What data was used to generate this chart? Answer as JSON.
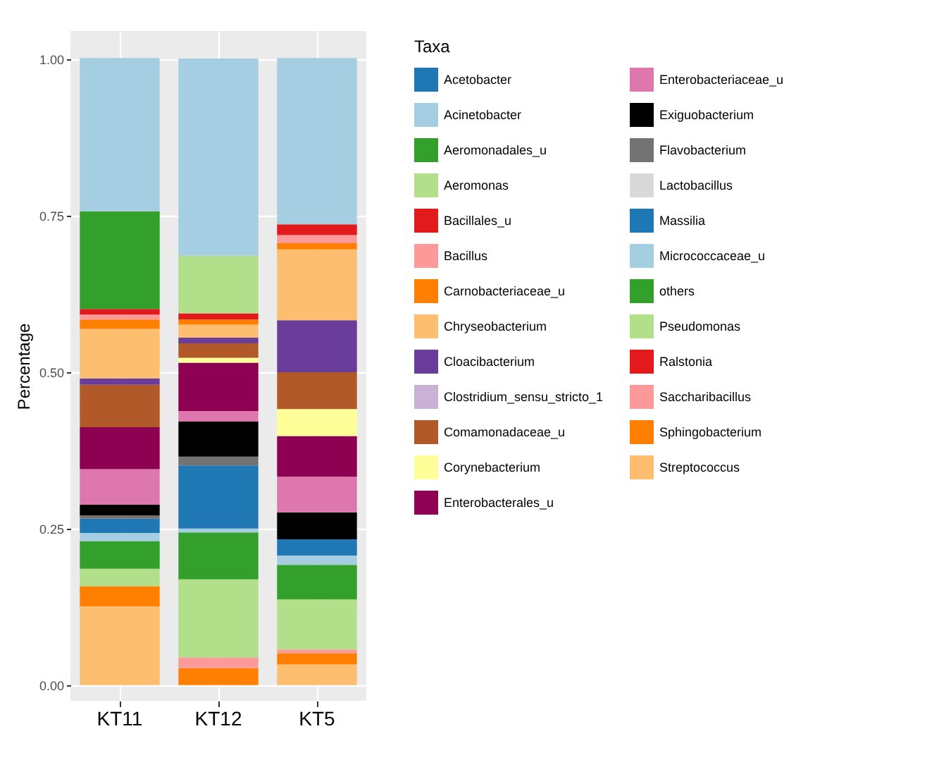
{
  "chart_data": {
    "type": "bar",
    "stacked": true,
    "ylabel": "Percentage",
    "legend_title": "Taxa",
    "legend": "right",
    "grid": true,
    "categories": [
      "KT11",
      "KT12",
      "KT5"
    ],
    "ylim": [
      -0.025,
      1.045
    ],
    "yticks": [
      {
        "value": 0,
        "label": "0.00"
      },
      {
        "value": 0.25,
        "label": "0.25"
      },
      {
        "value": 0.5,
        "label": "0.50"
      },
      {
        "value": 0.75,
        "label": "0.75"
      },
      {
        "value": 1,
        "label": "1.00"
      }
    ],
    "series": [
      {
        "name": "Streptococcus",
        "color": "#fdbf6f",
        "values": [
          0.126,
          null,
          0.033
        ]
      },
      {
        "name": "Sphingobacterium",
        "color": "#ff7f00",
        "values": [
          0.032,
          0.027,
          0.018
        ]
      },
      {
        "name": "Saccharibacillus",
        "color": "#fb9a99",
        "values": [
          null,
          0.017,
          0.006
        ]
      },
      {
        "name": "Ralstonia",
        "color": "#e31a1c",
        "values": [
          null,
          null,
          null
        ]
      },
      {
        "name": "Pseudomonas",
        "color": "#b2df8a",
        "values": [
          0.028,
          0.125,
          0.08
        ]
      },
      {
        "name": "others",
        "color": "#33a02c",
        "values": [
          0.044,
          0.075,
          0.055
        ]
      },
      {
        "name": "Micrococcaceae_u",
        "color": "#a6cee3",
        "values": [
          0.013,
          0.006,
          0.015
        ]
      },
      {
        "name": "Massilia",
        "color": "#1f78b4",
        "values": [
          0.023,
          0.101,
          0.026
        ]
      },
      {
        "name": "Lactobacillus",
        "color": "#d9d9d9",
        "values": [
          null,
          null,
          null
        ]
      },
      {
        "name": "Flavobacterium",
        "color": "#737373",
        "values": [
          0.005,
          0.014,
          null
        ]
      },
      {
        "name": "Exiguobacterium",
        "color": "#000000",
        "values": [
          0.017,
          0.056,
          0.043
        ]
      },
      {
        "name": "Enterobacteriaceae_u",
        "color": "#de77ae",
        "values": [
          0.057,
          0.017,
          0.057
        ]
      },
      {
        "name": "Enterobacterales_u",
        "color": "#8e0152",
        "values": [
          0.067,
          0.077,
          0.065
        ]
      },
      {
        "name": "Corynebacterium",
        "color": "#ffff99",
        "values": [
          null,
          0.008,
          0.043
        ]
      },
      {
        "name": "Comamonadaceae_u",
        "color": "#b15928",
        "values": [
          0.068,
          0.023,
          0.059
        ]
      },
      {
        "name": "Clostridium_sensu_stricto_1",
        "color": "#cab2d6",
        "values": [
          null,
          null,
          null
        ]
      },
      {
        "name": "Cloacibacterium",
        "color": "#6a3d9a",
        "values": [
          0.01,
          0.009,
          0.083
        ]
      },
      {
        "name": "Chryseobacterium",
        "color": "#fdbf6f",
        "values": [
          0.079,
          0.021,
          0.113
        ]
      },
      {
        "name": "Carnobacteriaceae_u",
        "color": "#ff7f00",
        "values": [
          0.015,
          0.008,
          0.01
        ]
      },
      {
        "name": "Bacillus",
        "color": "#fb9a99",
        "values": [
          0.008,
          null,
          0.013
        ]
      },
      {
        "name": "Bacillales_u",
        "color": "#e31a1c",
        "values": [
          0.009,
          0.01,
          0.017
        ]
      },
      {
        "name": "Aeromonas",
        "color": "#b2df8a",
        "values": [
          null,
          0.092,
          null
        ]
      },
      {
        "name": "Aeromonadales_u",
        "color": "#33a02c",
        "values": [
          0.156,
          null,
          null
        ]
      },
      {
        "name": "Acinetobacter",
        "color": "#a6cee3",
        "values": [
          0.245,
          0.315,
          0.266
        ]
      },
      {
        "name": "Acetobacter",
        "color": "#1f78b4",
        "values": [
          null,
          null,
          null
        ]
      }
    ]
  }
}
